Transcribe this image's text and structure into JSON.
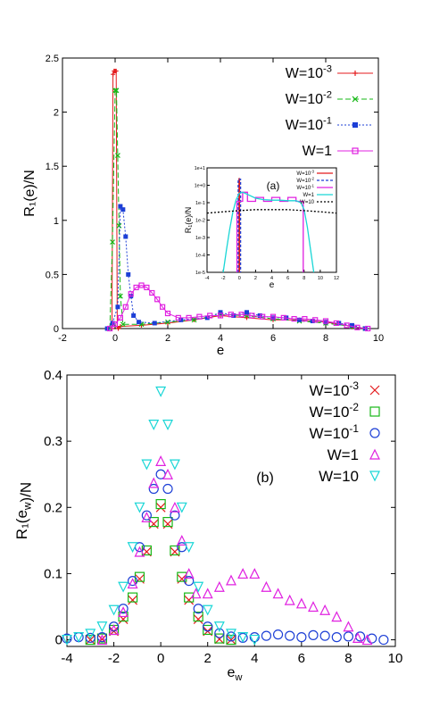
{
  "chart_data": [
    {
      "type": "scatter",
      "panel": "top",
      "xlabel": "e",
      "ylabel": "R₁(e)/N",
      "xlim": [
        -2,
        10
      ],
      "ylim": [
        0,
        2.5
      ],
      "xticks": [
        "-2",
        "0",
        "2",
        "4",
        "6",
        "8",
        "10"
      ],
      "yticks": [
        "0",
        "0.5",
        "1",
        "1.5",
        "2",
        "2.5"
      ],
      "grid": false,
      "legend": "top-right",
      "series": [
        {
          "name": "W=10-3",
          "color": "#e41a1c",
          "marker": "+",
          "dash": "",
          "x": [
            -0.12,
            -0.08,
            -0.04,
            0.0,
            0.04,
            0.08,
            0.12,
            0.2,
            1.0,
            2.0,
            3.0,
            4.0,
            5.0,
            6.0,
            7.0,
            8.0,
            9.0,
            9.5
          ],
          "y": [
            0.0,
            2.35,
            2.38,
            2.38,
            2.38,
            0.02,
            0.0,
            0.02,
            0.03,
            0.05,
            0.08,
            0.12,
            0.1,
            0.08,
            0.08,
            0.06,
            0.02,
            0.0
          ]
        },
        {
          "name": "W=10-2",
          "color": "#17b817",
          "marker": "x",
          "dash": "6,3",
          "x": [
            -0.2,
            -0.1,
            0.0,
            0.05,
            0.1,
            0.15,
            0.2,
            0.3,
            1.0,
            2.0,
            3.0,
            4.0,
            5.0,
            6.0,
            7.0,
            8.0,
            9.0,
            9.5
          ],
          "y": [
            0.0,
            0.8,
            2.2,
            2.2,
            1.6,
            0.95,
            0.3,
            0.04,
            0.04,
            0.06,
            0.08,
            0.13,
            0.12,
            0.09,
            0.07,
            0.05,
            0.02,
            0.0
          ],
          "text_values": [
            "0.8",
            "2.2"
          ]
        },
        {
          "name": "W=10-1",
          "color": "#1d3fd6",
          "marker": "square",
          "dash": "2,2",
          "x": [
            -0.3,
            -0.1,
            0.1,
            0.2,
            0.3,
            0.4,
            0.5,
            0.6,
            0.7,
            0.9,
            1.5,
            2.5,
            3.5,
            4.0,
            4.5,
            5.0,
            5.5,
            6.0,
            6.5,
            7.0,
            7.5,
            8.0,
            8.5,
            9.0,
            9.5
          ],
          "y": [
            0.0,
            0.05,
            0.2,
            1.13,
            1.1,
            0.85,
            0.5,
            0.3,
            0.12,
            0.06,
            0.05,
            0.08,
            0.1,
            0.15,
            0.12,
            0.15,
            0.12,
            0.1,
            0.1,
            0.08,
            0.07,
            0.06,
            0.05,
            0.03,
            0.0
          ]
        },
        {
          "name": "W=1",
          "color": "#e020e0",
          "marker": "hollow-square",
          "dash": "",
          "x": [
            -0.2,
            0.0,
            0.2,
            0.4,
            0.6,
            0.8,
            1.0,
            1.2,
            1.4,
            1.6,
            1.8,
            2.0,
            2.4,
            2.8,
            3.2,
            3.6,
            4.0,
            4.4,
            4.8,
            5.2,
            5.6,
            6.0,
            6.4,
            6.8,
            7.2,
            7.6,
            8.0,
            8.4,
            8.8,
            9.2,
            9.6
          ],
          "y": [
            0.0,
            0.04,
            0.1,
            0.2,
            0.32,
            0.38,
            0.4,
            0.38,
            0.33,
            0.27,
            0.2,
            0.14,
            0.1,
            0.1,
            0.11,
            0.12,
            0.12,
            0.13,
            0.13,
            0.12,
            0.11,
            0.11,
            0.1,
            0.09,
            0.09,
            0.08,
            0.07,
            0.05,
            0.03,
            0.01,
            0.0
          ]
        }
      ],
      "inset": {
        "type": "line",
        "label": "(a)",
        "xlabel": "e",
        "ylabel": "R₁(e)/N",
        "xlim": [
          -4,
          12
        ],
        "ylim_log10": [
          -5,
          1
        ],
        "xticks": [
          "-4",
          "-2",
          "0",
          "2",
          "4",
          "6",
          "8",
          "10",
          "12"
        ],
        "yticks": [
          "1e-5",
          "1e-4",
          "1e-3",
          "1e-2",
          "1e-1",
          "1e+0",
          "1e+1"
        ],
        "legend": "top-right",
        "series": [
          {
            "name": "W=10-3",
            "color": "#e41a1c",
            "dash": "",
            "x": [
              -0.05,
              -0.05,
              0.02,
              0.02
            ],
            "y": [
              1e-05,
              2.4,
              2.4,
              1e-05
            ]
          },
          {
            "name": "W=10-2",
            "color": "#1d3fd6",
            "dash": "3,2",
            "x": [
              -0.15,
              -0.15,
              0.15,
              0.15
            ],
            "y": [
              1e-05,
              2.2,
              2.2,
              1e-05
            ]
          },
          {
            "name": "W=10-1",
            "color": "#e020e0",
            "dash": "",
            "x": [
              -0.3,
              -0.3,
              0.4,
              0.4,
              1.0,
              1.0,
              2.0,
              2.0,
              3.0,
              3.0,
              4.0,
              4.0,
              5.0,
              5.0,
              6.0,
              6.0,
              7.0,
              7.0,
              7.9,
              7.9
            ],
            "y": [
              1e-05,
              0.12,
              0.12,
              0.4,
              0.4,
              0.12,
              0.12,
              0.2,
              0.2,
              0.12,
              0.12,
              0.2,
              0.2,
              0.12,
              0.12,
              0.2,
              0.2,
              0.12,
              0.12,
              1e-05
            ]
          },
          {
            "name": "W=1",
            "color": "#19d6d6",
            "dash": "",
            "x": [
              -2.0,
              -1.6,
              -1.2,
              -0.8,
              -0.4,
              0.0,
              0.4,
              1.0,
              2.0,
              3.0,
              4.0,
              5.0,
              6.0,
              7.0,
              7.6,
              8.0,
              8.4,
              8.8,
              9.2
            ],
            "y": [
              1e-05,
              0.0002,
              0.003,
              0.03,
              0.15,
              0.35,
              0.4,
              0.3,
              0.18,
              0.15,
              0.14,
              0.14,
              0.13,
              0.13,
              0.1,
              0.04,
              0.004,
              0.0002,
              1e-05
            ]
          },
          {
            "name": "W=10",
            "color": "#000000",
            "dash": "2,2",
            "x": [
              -4.0,
              -2.0,
              0.0,
              2.0,
              4.0,
              6.0,
              8.0,
              10.0,
              12.0
            ],
            "y": [
              0.025,
              0.03,
              0.035,
              0.04,
              0.04,
              0.04,
              0.035,
              0.03,
              0.025
            ]
          }
        ]
      }
    },
    {
      "type": "scatter",
      "panel": "bottom",
      "label": "(b)",
      "xlabel": "e_w",
      "ylabel": "R₁(e_w)/N",
      "xlim": [
        -4,
        10
      ],
      "ylim": [
        -0.01,
        0.4
      ],
      "xticks": [
        "-4",
        "-2",
        "0",
        "2",
        "4",
        "6",
        "8",
        "10"
      ],
      "yticks": [
        "0",
        "0.1",
        "0.2",
        "0.3",
        "0.4"
      ],
      "grid": false,
      "legend": "top-right",
      "series": [
        {
          "name": "W=10-3",
          "color": "#e41a1c",
          "marker": "x",
          "x": [
            -3.0,
            -2.5,
            -2.0,
            -1.6,
            -1.2,
            -0.9,
            -0.6,
            -0.3,
            0.0,
            0.3,
            0.6,
            0.9,
            1.2,
            1.6,
            2.0,
            2.5,
            3.0
          ],
          "y": [
            0.0,
            0.001,
            0.013,
            0.031,
            0.06,
            0.092,
            0.133,
            0.175,
            0.2,
            0.175,
            0.133,
            0.092,
            0.06,
            0.031,
            0.013,
            0.001,
            0.0
          ]
        },
        {
          "name": "W=10-2",
          "color": "#17b817",
          "marker": "hollow-square",
          "x": [
            -3.0,
            -2.5,
            -2.0,
            -1.6,
            -1.2,
            -0.9,
            -0.6,
            -0.3,
            0.0,
            0.3,
            0.6,
            0.9,
            1.2,
            1.6,
            2.0,
            2.5,
            3.0
          ],
          "y": [
            0.0,
            0.002,
            0.015,
            0.035,
            0.064,
            0.095,
            0.135,
            0.178,
            0.205,
            0.178,
            0.135,
            0.095,
            0.064,
            0.035,
            0.015,
            0.002,
            0.0
          ]
        },
        {
          "name": "W=10-1",
          "color": "#1d3fd6",
          "marker": "hollow-circle",
          "x": [
            -4.0,
            -3.5,
            -3.0,
            -2.5,
            -2.0,
            -1.6,
            -1.2,
            -0.9,
            -0.6,
            -0.3,
            0.0,
            0.3,
            0.6,
            0.9,
            1.2,
            1.6,
            2.0,
            2.5,
            3.0,
            3.5,
            4.0,
            4.5,
            5.0,
            5.5,
            6.0,
            6.5,
            7.0,
            7.5,
            8.0,
            8.5,
            9.0,
            9.5
          ],
          "y": [
            0.002,
            0.004,
            0.003,
            0.004,
            0.02,
            0.047,
            0.089,
            0.14,
            0.188,
            0.228,
            0.25,
            0.228,
            0.188,
            0.14,
            0.089,
            0.047,
            0.02,
            0.01,
            0.005,
            0.003,
            0.004,
            0.006,
            0.008,
            0.006,
            0.004,
            0.007,
            0.006,
            0.004,
            0.005,
            0.005,
            0.002,
            0.0
          ]
        },
        {
          "name": "W=1",
          "color": "#e020e0",
          "marker": "hollow-triangle-up",
          "x": [
            -2.5,
            -2.0,
            -1.6,
            -1.2,
            -0.9,
            -0.6,
            -0.3,
            0.0,
            0.3,
            0.6,
            0.9,
            1.2,
            1.5,
            2.0,
            2.5,
            3.0,
            3.5,
            4.0,
            4.5,
            5.0,
            5.5,
            6.0,
            6.5,
            7.0,
            7.5,
            8.0,
            8.4,
            8.8
          ],
          "y": [
            0.0,
            0.015,
            0.042,
            0.085,
            0.133,
            0.185,
            0.237,
            0.27,
            0.25,
            0.2,
            0.15,
            0.1,
            0.07,
            0.07,
            0.08,
            0.09,
            0.1,
            0.1,
            0.08,
            0.07,
            0.06,
            0.055,
            0.05,
            0.045,
            0.035,
            0.02,
            0.003,
            0.0
          ]
        },
        {
          "name": "W=10",
          "color": "#19d6d6",
          "marker": "hollow-triangle-down",
          "x": [
            -4.0,
            -3.5,
            -3.0,
            -2.5,
            -2.0,
            -1.6,
            -1.2,
            -0.9,
            -0.6,
            -0.3,
            0.0,
            0.3,
            0.6,
            0.9,
            1.2,
            1.6,
            2.0,
            2.5,
            3.0,
            3.5,
            4.0
          ],
          "y": [
            0.0,
            0.004,
            0.009,
            0.02,
            0.045,
            0.08,
            0.14,
            0.2,
            0.265,
            0.325,
            0.375,
            0.325,
            0.265,
            0.2,
            0.14,
            0.08,
            0.045,
            0.02,
            0.009,
            0.004,
            0.0
          ]
        }
      ]
    }
  ]
}
